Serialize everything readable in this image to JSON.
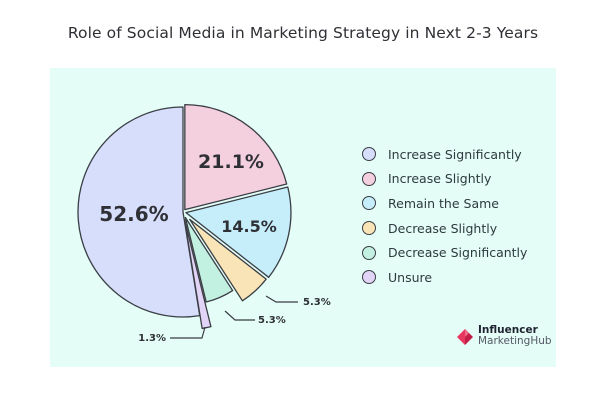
{
  "title": "Role of Social Media in Marketing Strategy in Next 2-3 Years",
  "colors": {
    "panel_bg": "#e4fdf7",
    "outline": "#3a3d44"
  },
  "legend": {
    "items": [
      {
        "label": "Increase Significantly",
        "color": "#d6defb"
      },
      {
        "label": "Increase Slightly",
        "color": "#f4cfdd"
      },
      {
        "label": "Remain the Same",
        "color": "#c5eefa"
      },
      {
        "label": "Decrease Slightly",
        "color": "#f8e4b6"
      },
      {
        "label": "Decrease Significantly",
        "color": "#c2f1e2"
      },
      {
        "label": "Unsure",
        "color": "#e1d4f7"
      }
    ]
  },
  "slice_labels": {
    "increase_significantly": "52.6%",
    "increase_slightly": "21.1%",
    "remain_the_same": "14.5%",
    "decrease_slightly": "5.3%",
    "decrease_significantly": "5.3%",
    "unsure": "1.3%"
  },
  "logo": {
    "line1": "Influencer",
    "line2": "MarketingHub"
  },
  "chart_data": {
    "type": "pie",
    "title": "Role of Social Media in Marketing Strategy in Next 2-3 Years",
    "categories": [
      "Increase Significantly",
      "Increase Slightly",
      "Remain the Same",
      "Decrease Slightly",
      "Decrease Significantly",
      "Unsure"
    ],
    "values": [
      52.6,
      21.1,
      14.5,
      5.3,
      5.3,
      1.3
    ],
    "unit": "%",
    "colors": [
      "#d6defb",
      "#f4cfdd",
      "#c5eefa",
      "#f8e4b6",
      "#c2f1e2",
      "#e1d4f7"
    ],
    "legend_position": "right",
    "exploded": true,
    "start_angle": "12 o'clock, clockwise from Increase Slightly"
  }
}
